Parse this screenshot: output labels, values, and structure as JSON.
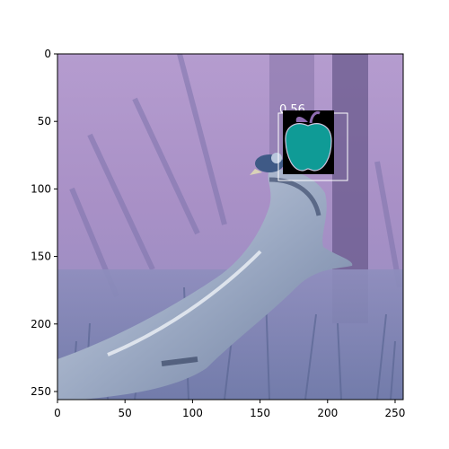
{
  "image": {
    "description_tags": [
      "bird-on-driftwood",
      "color-inverted",
      "purple-blue-tones"
    ],
    "palette": {
      "sky": "#b49ad0",
      "sky_dark": "#8a76b2",
      "grass": "#7a86b6",
      "wood_light": "#d8dde8",
      "wood_mid": "#a9b6cc",
      "wood_dark": "#4c5b7a",
      "trunk": "#5e4f7e"
    }
  },
  "axes": {
    "xticks": [
      "0",
      "50",
      "100",
      "150",
      "200",
      "250"
    ],
    "yticks": [
      "0",
      "50",
      "100",
      "150",
      "200",
      "250"
    ],
    "xlim": [
      0,
      256
    ],
    "ylim": [
      0,
      256
    ]
  },
  "detection": {
    "score_text": "0.56",
    "box_color": "#ffffff",
    "icon": "apple-icon",
    "icon_color": "#0f9b96",
    "icon_background": "#000000",
    "leaf_color": "#8e6bb0"
  }
}
